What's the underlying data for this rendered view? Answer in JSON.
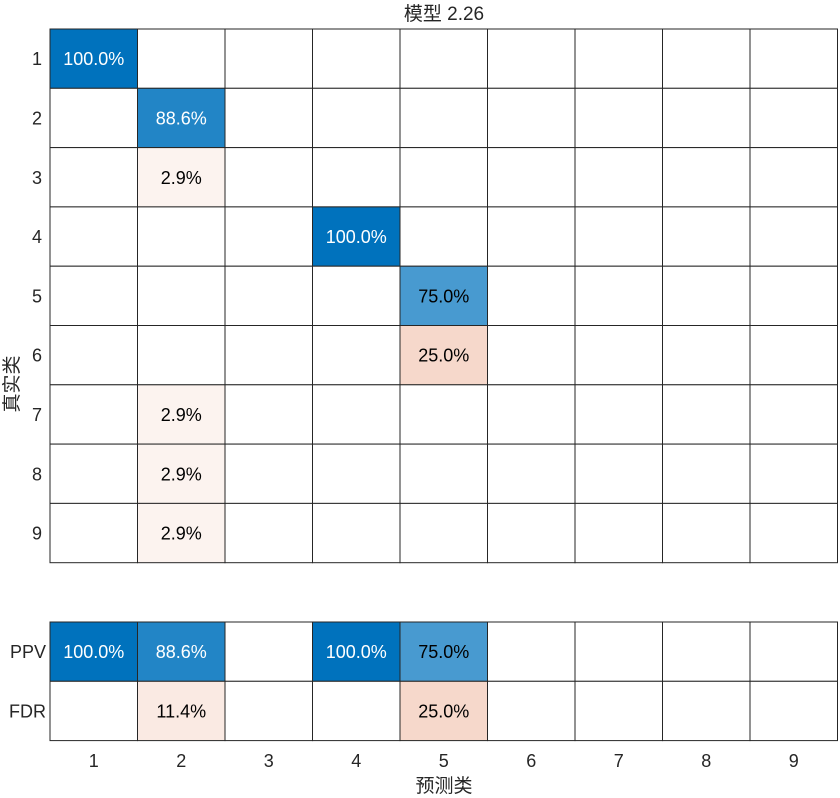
{
  "chart_data": {
    "type": "heatmap",
    "title": "模型 2.26",
    "xlabel": "预测类",
    "ylabel": "真实类",
    "x_categories": [
      "1",
      "2",
      "3",
      "4",
      "5",
      "6",
      "7",
      "8",
      "9"
    ],
    "y_categories": [
      "1",
      "2",
      "3",
      "4",
      "5",
      "6",
      "7",
      "8",
      "9"
    ],
    "colors": {
      "positive": "#0072BD",
      "negative": "#D95319",
      "grid": "#262626",
      "text_dark": "#000000",
      "text_light": "#ffffff"
    },
    "cells": [
      {
        "row": "1",
        "col": "1",
        "value": 100.0,
        "kind": "positive",
        "label": "100.0%"
      },
      {
        "row": "2",
        "col": "2",
        "value": 88.6,
        "kind": "positive",
        "label": "88.6%"
      },
      {
        "row": "3",
        "col": "2",
        "value": 2.9,
        "kind": "negative",
        "label": "2.9%"
      },
      {
        "row": "4",
        "col": "4",
        "value": 100.0,
        "kind": "positive",
        "label": "100.0%"
      },
      {
        "row": "5",
        "col": "5",
        "value": 75.0,
        "kind": "positive",
        "label": "75.0%"
      },
      {
        "row": "6",
        "col": "5",
        "value": 25.0,
        "kind": "negative",
        "label": "25.0%"
      },
      {
        "row": "7",
        "col": "2",
        "value": 2.9,
        "kind": "negative",
        "label": "2.9%"
      },
      {
        "row": "8",
        "col": "2",
        "value": 2.9,
        "kind": "negative",
        "label": "2.9%"
      },
      {
        "row": "9",
        "col": "2",
        "value": 2.9,
        "kind": "negative",
        "label": "2.9%"
      }
    ],
    "summary_rows": [
      "PPV",
      "FDR"
    ],
    "summary_cells": [
      {
        "row": "PPV",
        "col": "1",
        "value": 100.0,
        "kind": "positive",
        "label": "100.0%"
      },
      {
        "row": "PPV",
        "col": "2",
        "value": 88.6,
        "kind": "positive",
        "label": "88.6%"
      },
      {
        "row": "PPV",
        "col": "4",
        "value": 100.0,
        "kind": "positive",
        "label": "100.0%"
      },
      {
        "row": "PPV",
        "col": "5",
        "value": 75.0,
        "kind": "positive",
        "label": "75.0%"
      },
      {
        "row": "FDR",
        "col": "2",
        "value": 11.4,
        "kind": "negative",
        "label": "11.4%"
      },
      {
        "row": "FDR",
        "col": "5",
        "value": 25.0,
        "kind": "negative",
        "label": "25.0%"
      }
    ]
  }
}
